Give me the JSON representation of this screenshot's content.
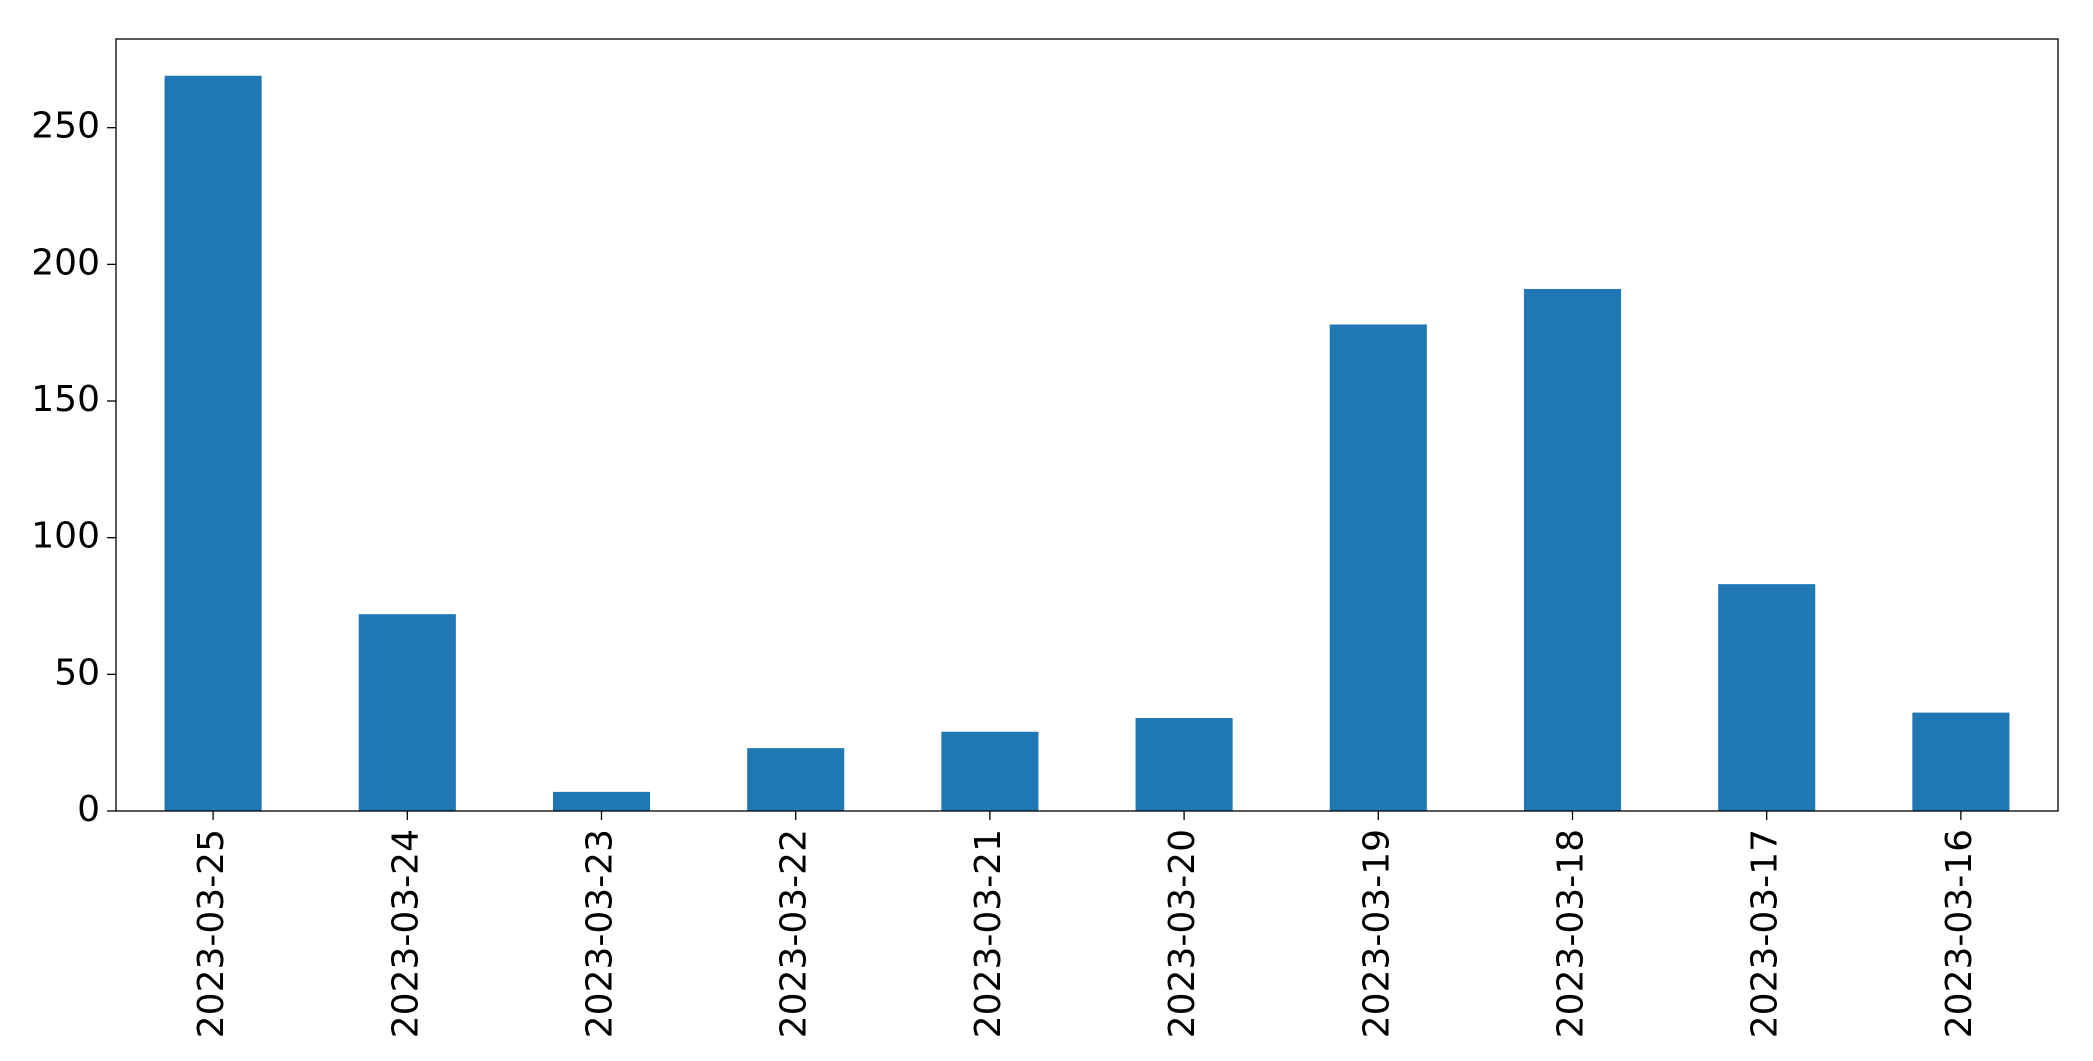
{
  "chart_data": {
    "type": "bar",
    "categories": [
      "2023-03-25",
      "2023-03-24",
      "2023-03-23",
      "2023-03-22",
      "2023-03-21",
      "2023-03-20",
      "2023-03-19",
      "2023-03-18",
      "2023-03-17",
      "2023-03-16"
    ],
    "values": [
      269,
      72,
      7,
      23,
      29,
      34,
      178,
      191,
      83,
      36
    ],
    "color": "#1f77b4",
    "ylim": [
      0,
      282.45
    ],
    "yticks": [
      0,
      50,
      100,
      150,
      200,
      250
    ],
    "grid": false
  }
}
